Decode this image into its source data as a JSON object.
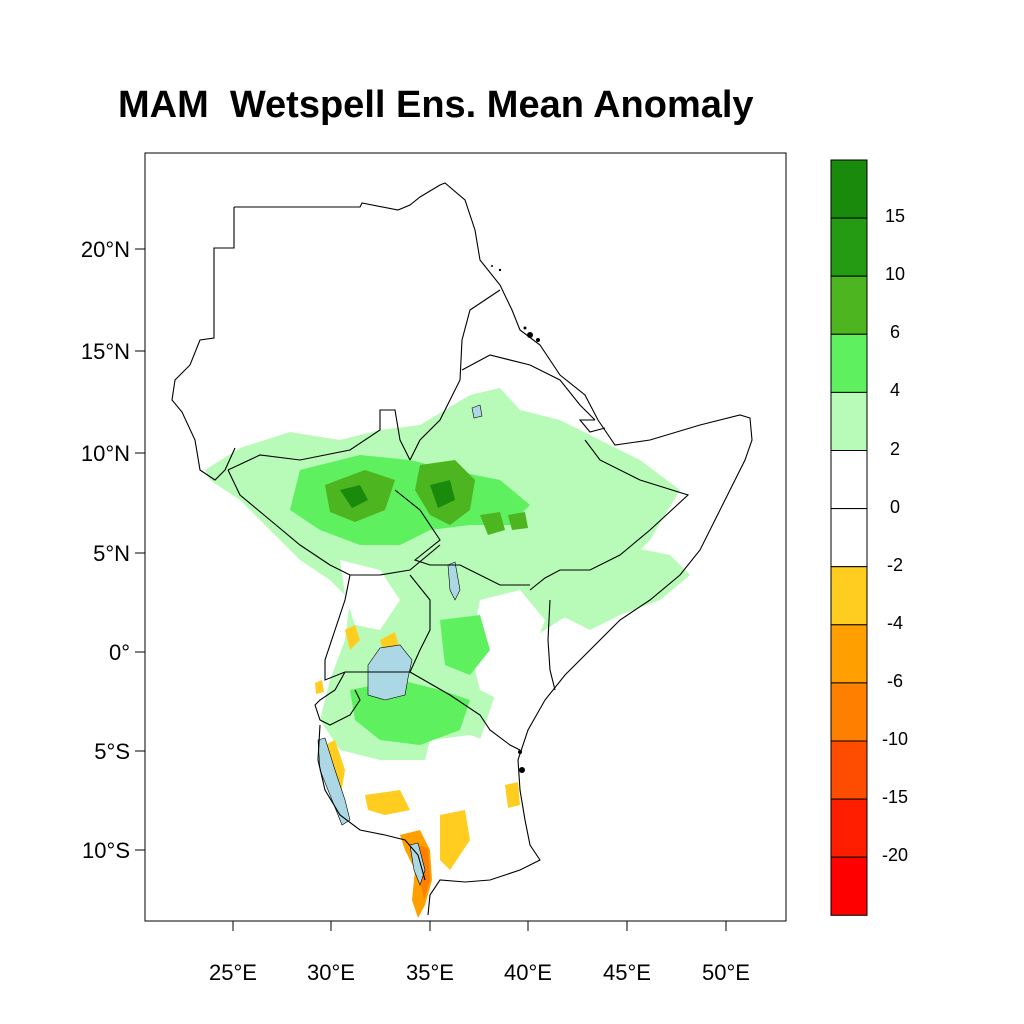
{
  "title": "MAM  Wetspell Ens. Mean Anomaly",
  "lat_labels": [
    "20°N",
    "15°N",
    "10°N",
    "5°N",
    "0°",
    "5°S",
    "10°S"
  ],
  "lon_labels": [
    "25°E",
    "30°E",
    "35°E",
    "40°E",
    "45°E",
    "50°E"
  ],
  "colorbar": {
    "labels": [
      "15",
      "10",
      "6",
      "4",
      "2",
      "0",
      "-2",
      "-4",
      "-6",
      "-10",
      "-15",
      "-20"
    ],
    "colors": [
      "#1a8a0c",
      "#259b14",
      "#4cb51f",
      "#5ef05e",
      "#b8fab8",
      "#ffffff",
      "#ffffff",
      "#ffcc20",
      "#ffa000",
      "#ff7f00",
      "#ff4d00",
      "#ff1e00",
      "#ff0000"
    ]
  },
  "colors": {
    "lake": "#acd8e6",
    "border": "#000000"
  }
}
